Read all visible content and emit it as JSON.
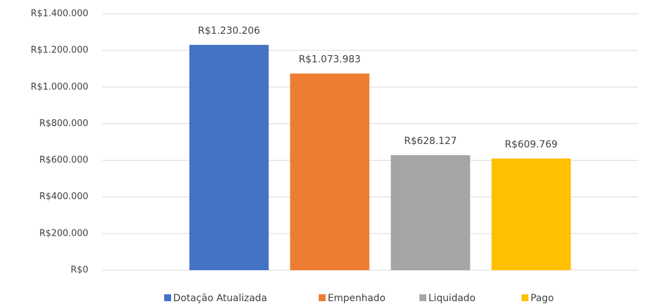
{
  "chart_data": {
    "type": "bar",
    "series": [
      {
        "name": "Dotação Atualizada",
        "color": "#4472c4",
        "values": [
          1230206
        ],
        "value_labels": [
          "R$1.230.206"
        ]
      },
      {
        "name": "Empenhado",
        "color": "#ed7d31",
        "values": [
          1073983
        ],
        "value_labels": [
          "R$1.073.983"
        ]
      },
      {
        "name": "Liquidado",
        "color": "#a5a5a5",
        "values": [
          628127
        ],
        "value_labels": [
          "R$628.127"
        ]
      },
      {
        "name": "Pago",
        "color": "#ffc000",
        "values": [
          609769
        ],
        "value_labels": [
          "R$609.769"
        ]
      }
    ],
    "ylim": [
      0,
      1400000
    ],
    "yticks": [
      {
        "value": 0,
        "label": "R$0"
      },
      {
        "value": 200000,
        "label": "R$200.000"
      },
      {
        "value": 400000,
        "label": "R$400.000"
      },
      {
        "value": 600000,
        "label": "R$600.000"
      },
      {
        "value": 800000,
        "label": "R$800.000"
      },
      {
        "value": 1000000,
        "label": "R$1.000.000"
      },
      {
        "value": 1200000,
        "label": "R$1.200.000"
      },
      {
        "value": 1400000,
        "label": "R$1.400.000"
      }
    ],
    "grid": true,
    "legend": "bottom"
  }
}
